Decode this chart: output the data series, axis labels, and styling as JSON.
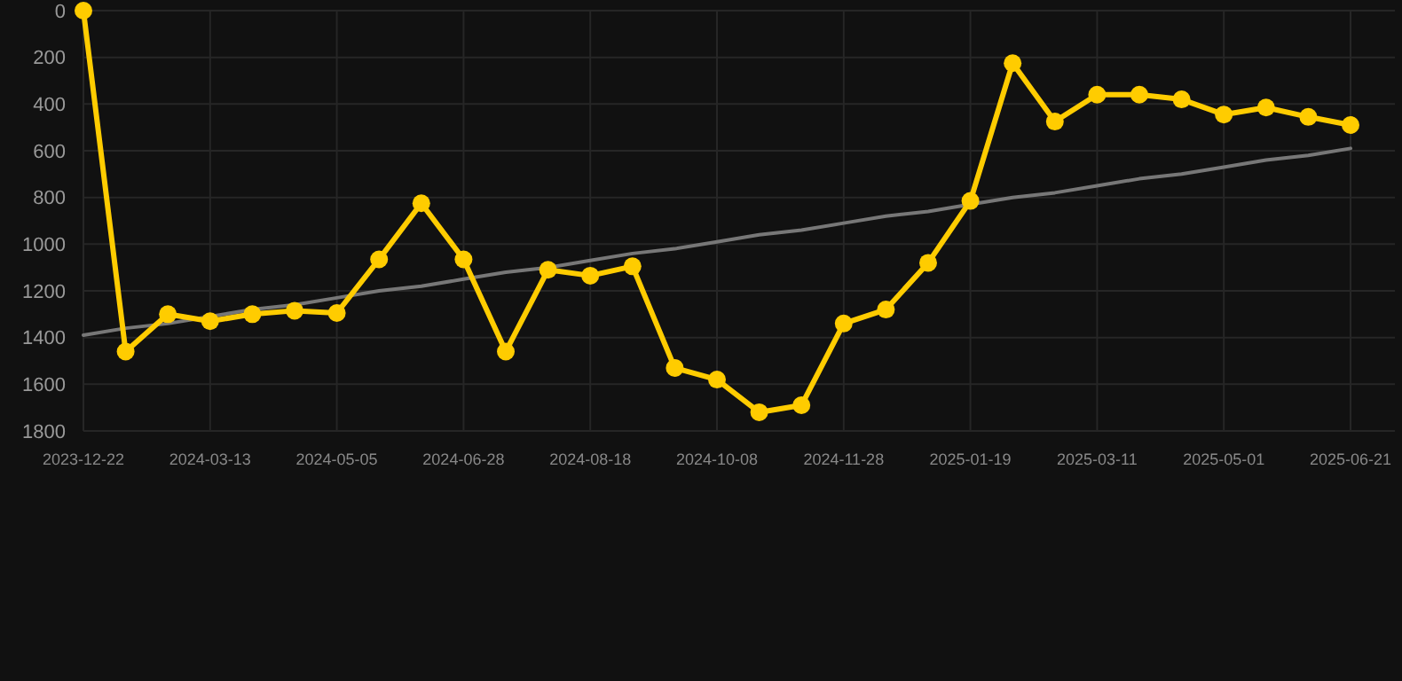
{
  "chart_data": {
    "type": "line",
    "categories": [
      "2023-12-22",
      null,
      null,
      "2024-03-13",
      null,
      null,
      "2024-05-05",
      null,
      null,
      "2024-06-28",
      null,
      null,
      "2024-08-18",
      null,
      null,
      "2024-10-08",
      null,
      null,
      "2024-11-28",
      null,
      null,
      "2025-01-19",
      null,
      null,
      "2025-03-11",
      null,
      null,
      "2025-05-01",
      null,
      null,
      "2025-06-21"
    ],
    "series": [
      {
        "color": "#ffcc00",
        "marker": "circle",
        "values": [
          0,
          1460,
          1300,
          1330,
          1300,
          1285,
          1295,
          1065,
          825,
          1065,
          1460,
          1110,
          1135,
          1095,
          1530,
          1580,
          1720,
          1690,
          1340,
          1280,
          1080,
          815,
          225,
          475,
          360,
          360,
          380,
          445,
          415,
          455,
          490
        ]
      },
      {
        "type": "line",
        "color": "#777777",
        "marker": "none",
        "values": [
          1390,
          1360,
          1340,
          1310,
          1280,
          1260,
          1230,
          1200,
          1180,
          1150,
          1120,
          1100,
          1070,
          1040,
          1020,
          990,
          960,
          940,
          910,
          880,
          860,
          830,
          800,
          780,
          750,
          720,
          700,
          670,
          640,
          620,
          590
        ]
      }
    ],
    "ylim": [
      1800,
      0
    ],
    "yticks": [
      0,
      200,
      400,
      600,
      800,
      1000,
      1200,
      1400,
      1600,
      1800
    ],
    "grid": true
  }
}
